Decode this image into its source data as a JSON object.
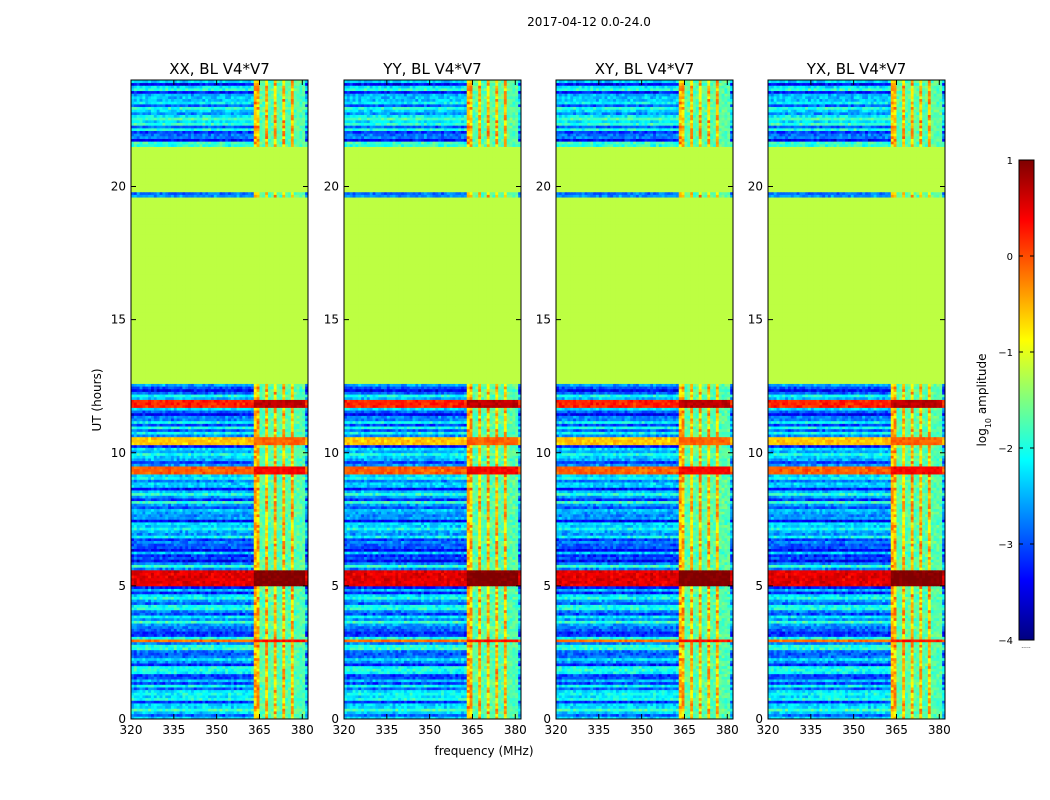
{
  "chart_data": {
    "type": "heatmap",
    "suptitle": "2017-04-12 0.0-24.0",
    "xlabel": "frequency (MHz)",
    "ylabel": "UT (hours)",
    "xlim": [
      320,
      382
    ],
    "ylim": [
      0,
      24
    ],
    "xticks": [
      320,
      335,
      350,
      365,
      380
    ],
    "yticks": [
      0,
      5,
      10,
      15,
      20
    ],
    "panels": [
      {
        "title": "XX, BL V4*V7"
      },
      {
        "title": "YY, BL V4*V7"
      },
      {
        "title": "XY, BL V4*V7"
      },
      {
        "title": "YX, BL V4*V7"
      }
    ],
    "colorbar": {
      "label": "log10 amplitude",
      "label_base": "log",
      "label_sub": "10",
      "label_rest": " amplitude",
      "colormap": "jet",
      "vmin": -4,
      "vmax": 1,
      "ticks": [
        -4,
        -3,
        -2,
        -1,
        0,
        1
      ],
      "tick_labels": [
        "−4",
        "−3",
        "−2",
        "−1",
        "0",
        "1"
      ],
      "bottom_note": "....."
    },
    "flagged_value": -1.2,
    "flagged_time_ranges": [
      [
        12.6,
        19.6
      ],
      [
        19.8,
        21.5
      ]
    ],
    "rfi_band_mhz": [
      363.5,
      381
    ],
    "rfi_channel_lines_mhz": [
      366,
      369,
      372,
      375,
      378,
      380
    ],
    "bright_time_bands": [
      {
        "t0": 5.0,
        "t1": 5.6,
        "value": 0.7
      },
      {
        "t0": 11.75,
        "t1": 12.05,
        "value": 0.4
      },
      {
        "t0": 10.3,
        "t1": 10.6,
        "value": -0.4
      },
      {
        "t0": 9.2,
        "t1": 9.5,
        "value": 0.1
      },
      {
        "t0": 2.9,
        "t1": 3.05,
        "value": 0.0
      }
    ],
    "background_value_range": [
      -3.4,
      -1.8
    ]
  }
}
